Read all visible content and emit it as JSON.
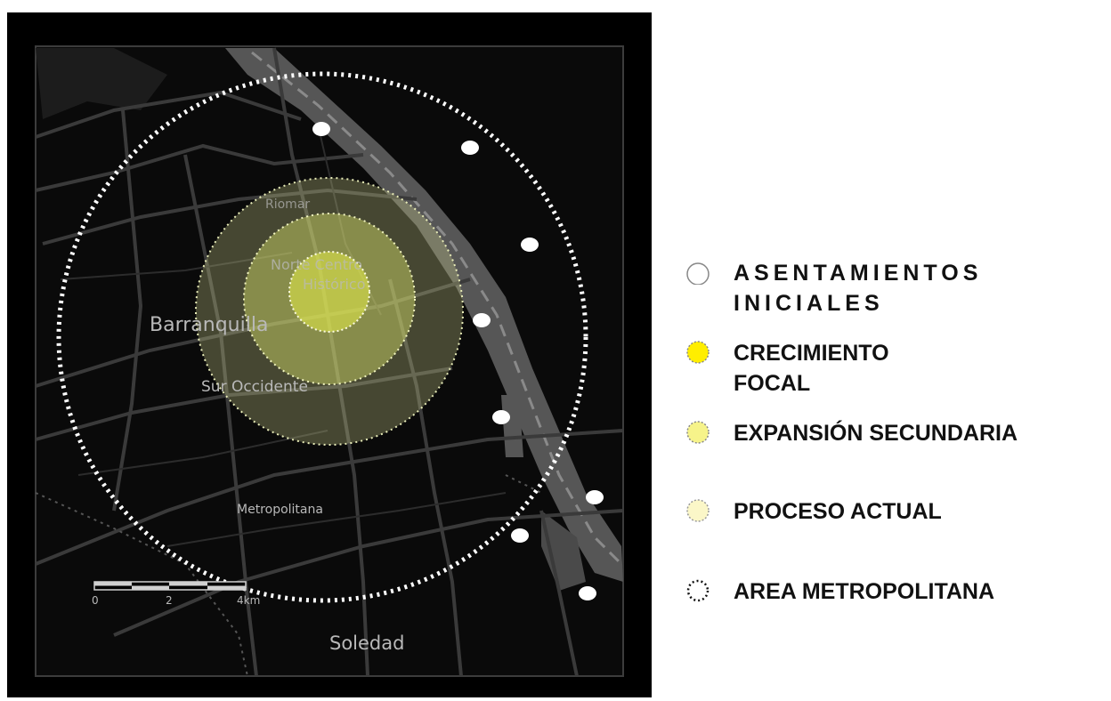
{
  "map": {
    "place_labels": {
      "riomar": "Riomar",
      "norte_centro": "Norte Centro",
      "historico": "Histórico",
      "barranquilla": "Barranquilla",
      "sur_occidente": "Sur Occidente",
      "metropolitana": "Metropolitana",
      "soledad": "Soledad"
    },
    "scale_bar": {
      "ticks": [
        "0",
        "2",
        "4km"
      ]
    },
    "colors": {
      "background": "#000000",
      "water": "#5a5a5a",
      "roads": "#3a3a3a",
      "area_metropolitana_ring": "#ffffff",
      "proceso_actual": "#c7c98a",
      "expansion_secundaria": "#d8e06a",
      "crecimiento_focal": "#e6ee4a",
      "asentamientos_iniciales": "#ffffff"
    }
  },
  "legend": {
    "items": [
      {
        "label": "ASENTAMIENTOS\nINICIALES",
        "icon": "white-circle-icon"
      },
      {
        "label": "CRECIMIENTO\nFOCAL",
        "icon": "yellow-circle-icon"
      },
      {
        "label": "EXPANSIÓN SECUNDARIA",
        "icon": "light-yellow-dotted-circle-icon"
      },
      {
        "label": "PROCESO ACTUAL",
        "icon": "pale-yellow-dotted-circle-icon"
      },
      {
        "label": "AREA METROPOLITANA",
        "icon": "dotted-circle-icon"
      }
    ]
  }
}
